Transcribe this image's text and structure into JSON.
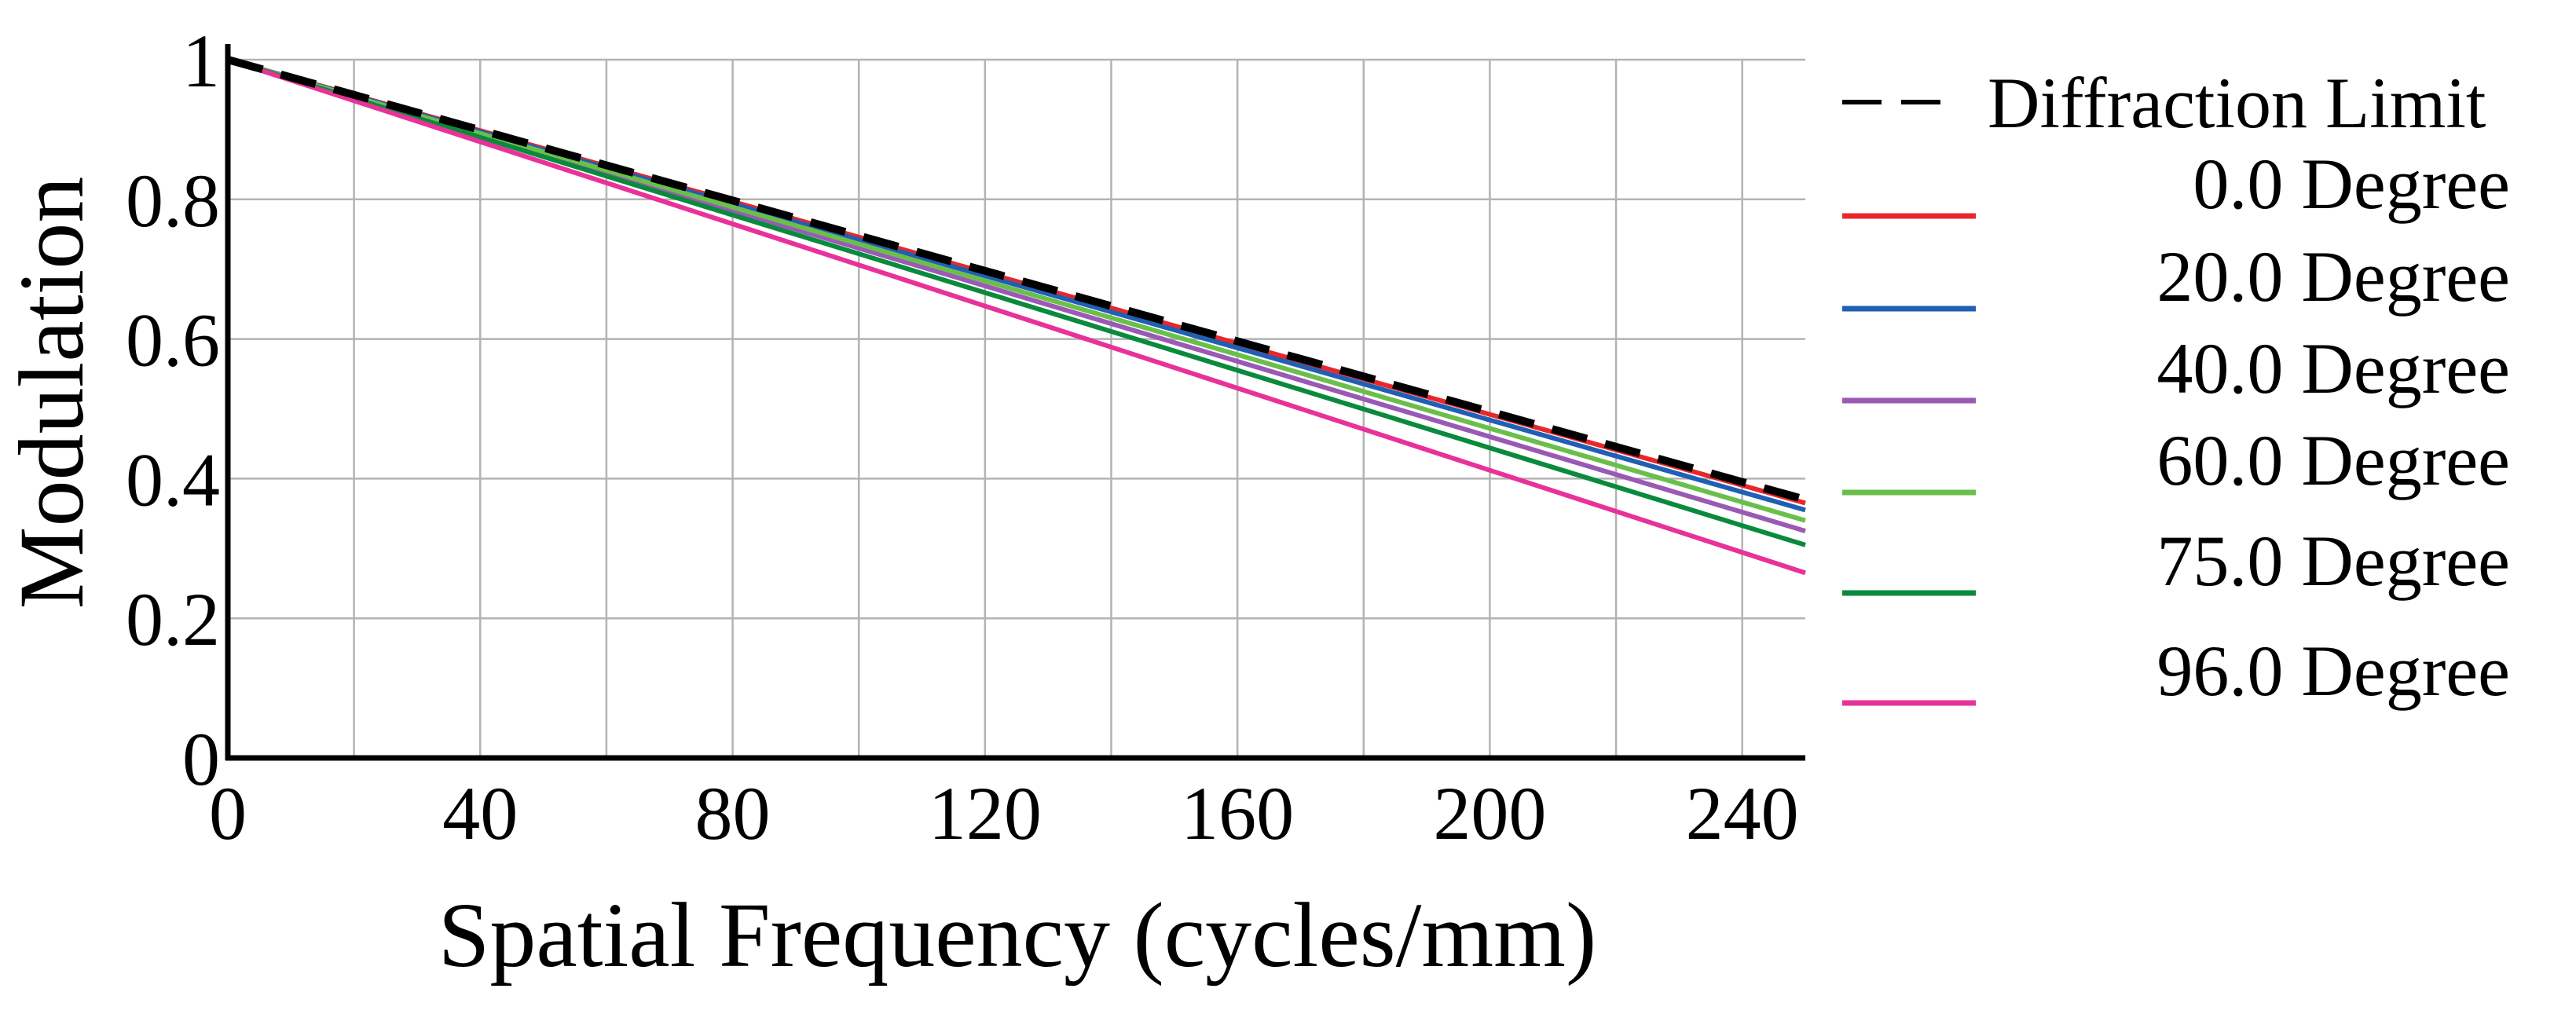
{
  "chart_data": {
    "type": "line",
    "title": "",
    "xlabel": "Spatial Frequency (cycles/mm)",
    "ylabel": "Modulation",
    "xlim": [
      0,
      250
    ],
    "ylim": [
      0,
      1
    ],
    "xticks": [
      0,
      40,
      80,
      120,
      160,
      200,
      240
    ],
    "xtick_labels": [
      "0",
      "40",
      "80",
      "120",
      "160",
      "200",
      "240"
    ],
    "yticks": [
      0,
      0.2,
      0.4,
      0.6,
      0.8,
      1
    ],
    "ytick_labels": [
      "0",
      "0.2",
      "0.4",
      "0.6",
      "0.8",
      "1"
    ],
    "grid_x": [
      0,
      20,
      40,
      60,
      80,
      100,
      120,
      140,
      160,
      180,
      200,
      220,
      240
    ],
    "grid_y": [
      0,
      0.2,
      0.4,
      0.6,
      0.8,
      1
    ],
    "grid": true,
    "legend_position": "right",
    "x": [
      0,
      250
    ],
    "series": [
      {
        "name": "Diffraction Limit",
        "color": "#000000",
        "dashed": true,
        "values": [
          1.0,
          0.37
        ]
      },
      {
        "name": "0.0 Degree",
        "color": "#e8272b",
        "dashed": false,
        "values": [
          1.0,
          0.365
        ]
      },
      {
        "name": "20.0 Degree",
        "color": "#1f5fb4",
        "dashed": false,
        "values": [
          1.0,
          0.355
        ]
      },
      {
        "name": "40.0 Degree",
        "color": "#9b59b6",
        "dashed": false,
        "values": [
          1.0,
          0.325
        ]
      },
      {
        "name": "60.0 Degree",
        "color": "#6abf4b",
        "dashed": false,
        "values": [
          1.0,
          0.34
        ]
      },
      {
        "name": "75.0 Degree",
        "color": "#0a8a3c",
        "dashed": false,
        "values": [
          1.0,
          0.305
        ]
      },
      {
        "name": "96.0 Degree",
        "color": "#e8329a",
        "dashed": false,
        "values": [
          1.0,
          0.265
        ]
      }
    ]
  }
}
